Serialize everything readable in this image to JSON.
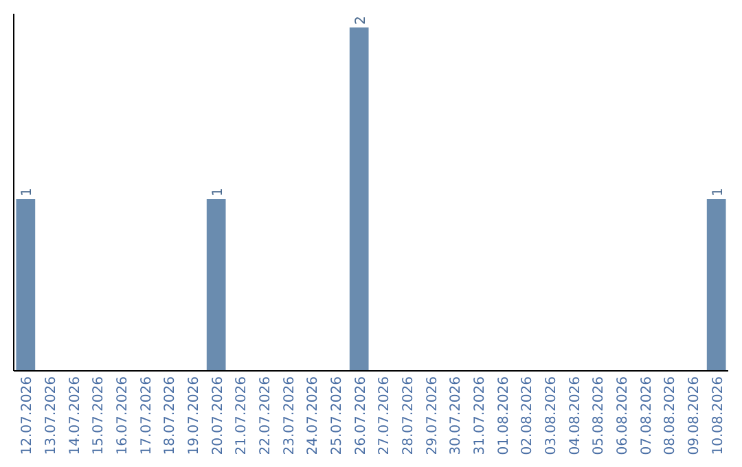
{
  "chart_data": {
    "type": "bar",
    "categories": [
      "12.07.2026",
      "13.07.2026",
      "14.07.2026",
      "15.07.2026",
      "16.07.2026",
      "17.07.2026",
      "18.07.2026",
      "19.07.2026",
      "20.07.2026",
      "21.07.2026",
      "22.07.2026",
      "23.07.2026",
      "24.07.2026",
      "25.07.2026",
      "26.07.2026",
      "27.07.2026",
      "28.07.2026",
      "29.07.2026",
      "30.07.2026",
      "31.07.2026",
      "01.08.2026",
      "02.08.2026",
      "03.08.2026",
      "04.08.2026",
      "05.08.2026",
      "06.08.2026",
      "07.08.2026",
      "08.08.2026",
      "09.08.2026",
      "10.08.2026"
    ],
    "values": [
      1,
      0,
      0,
      0,
      0,
      0,
      0,
      0,
      1,
      0,
      0,
      0,
      0,
      0,
      2,
      0,
      0,
      0,
      0,
      0,
      0,
      0,
      0,
      0,
      0,
      0,
      0,
      0,
      0,
      1
    ],
    "value_labels": [
      "1",
      null,
      null,
      null,
      null,
      null,
      null,
      null,
      "1",
      null,
      null,
      null,
      null,
      null,
      "2",
      null,
      null,
      null,
      null,
      null,
      null,
      null,
      null,
      null,
      null,
      null,
      null,
      null,
      null,
      "1"
    ],
    "color": "#6a8caf"
  }
}
